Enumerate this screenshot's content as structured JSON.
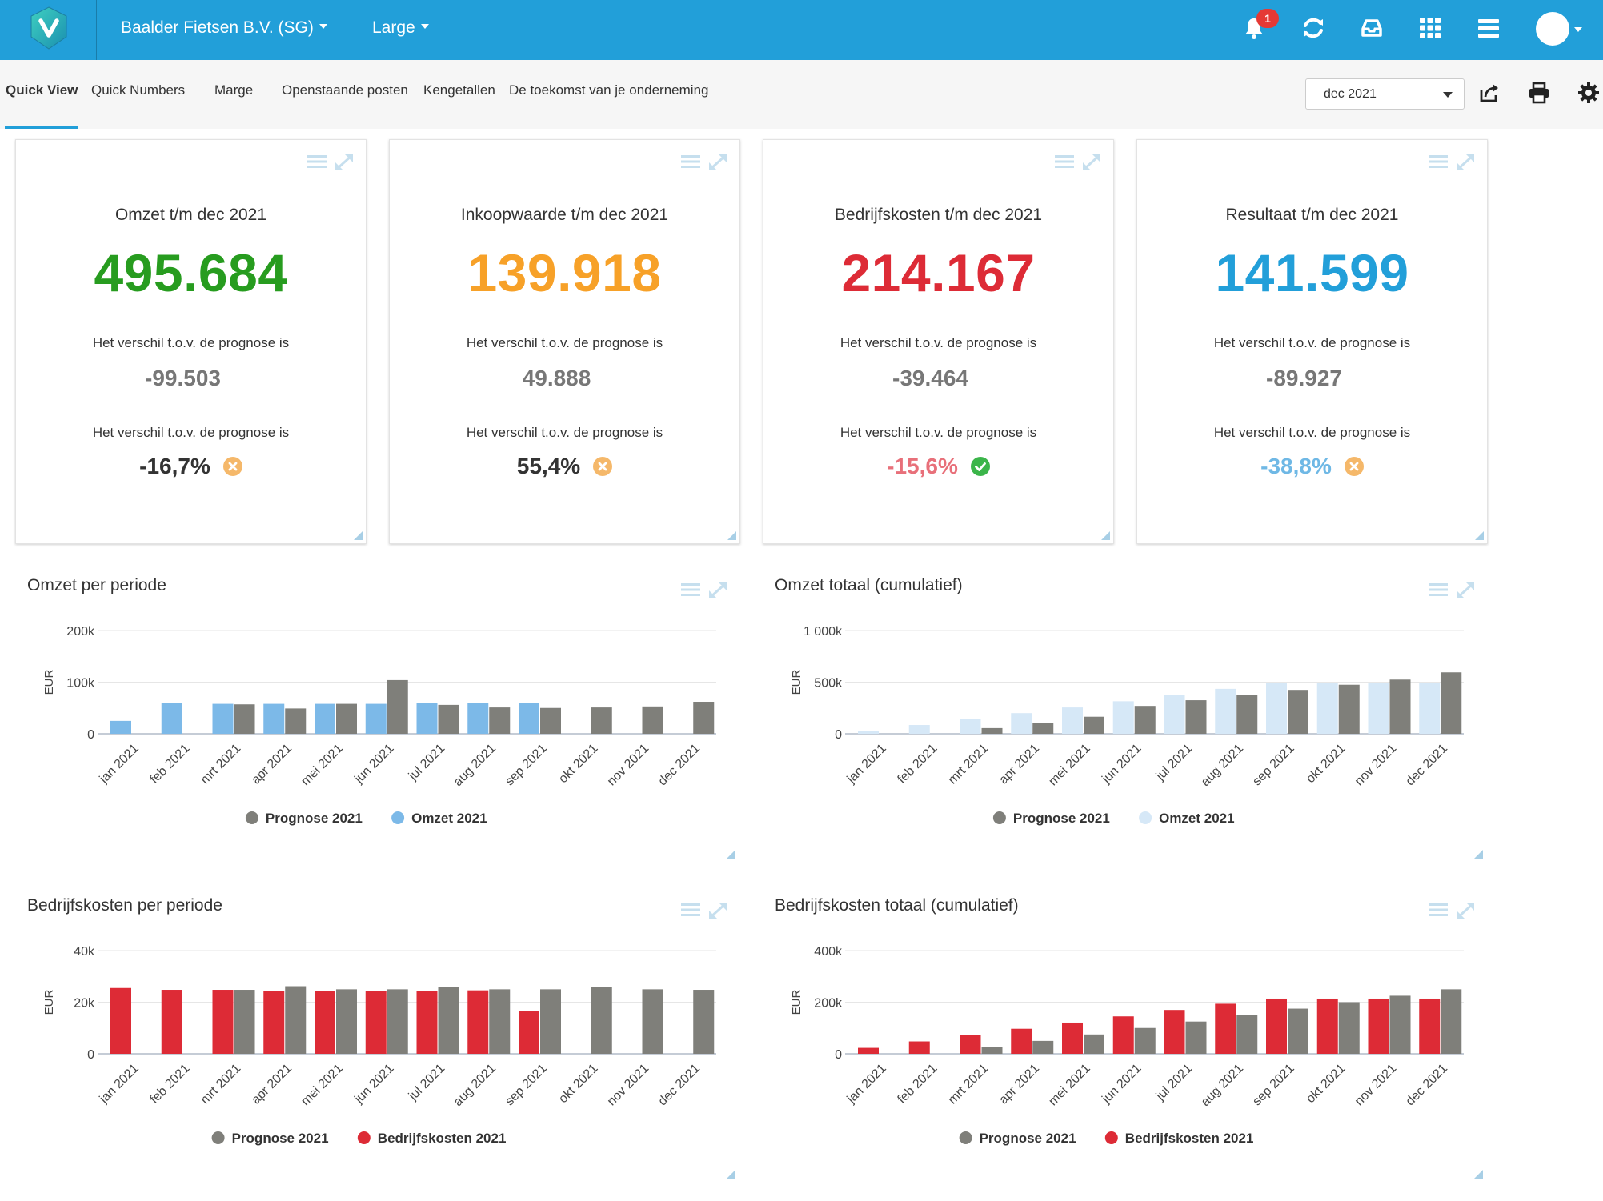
{
  "topbar": {
    "company": "Baalder Fietsen B.V. (SG)",
    "size": "Large",
    "notification_count": "1",
    "icons": [
      "bell-icon",
      "refresh-icon",
      "inbox-icon",
      "apps-grid-icon",
      "menu-icon"
    ]
  },
  "subnav": {
    "tabs": [
      "Quick View",
      "Quick Numbers",
      "Marge",
      "Openstaande posten",
      "Kengetallen",
      "De toekomst van je onderneming"
    ],
    "active_tab": "Quick View",
    "period": "dec 2021"
  },
  "kpis": [
    {
      "title": "Omzet t/m dec 2021",
      "value": "495.684",
      "color": "#279c1f",
      "label1": "Het verschil t.o.v. de prognose is",
      "diff": "-99.503",
      "label2": "Het verschil t.o.v. de prognose is",
      "pct": "-16,7%",
      "pct_color": "#333333",
      "status": "cross"
    },
    {
      "title": "Inkoopwaarde t/m dec 2021",
      "value": "139.918",
      "color": "#f7a128",
      "label1": "Het verschil t.o.v. de prognose is",
      "diff": "49.888",
      "label2": "Het verschil t.o.v. de prognose is",
      "pct": "55,4%",
      "pct_color": "#333333",
      "status": "cross"
    },
    {
      "title": "Bedrijfskosten t/m dec 2021",
      "value": "214.167",
      "color": "#dd2b36",
      "label1": "Het verschil t.o.v. de prognose is",
      "diff": "-39.464",
      "label2": "Het verschil t.o.v. de prognose is",
      "pct": "-15,6%",
      "pct_color": "#e8707a",
      "status": "check"
    },
    {
      "title": "Resultaat t/m dec 2021",
      "value": "141.599",
      "color": "#229fd9",
      "label1": "Het verschil t.o.v. de prognose is",
      "diff": "-89.927",
      "label2": "Het verschil t.o.v. de prognose is",
      "pct": "-38,8%",
      "pct_color": "#6fb8e5",
      "status": "cross"
    }
  ],
  "chart_data": [
    {
      "type": "bar",
      "title": "Omzet per periode",
      "ylabel": "EUR",
      "ylim": [
        0,
        200000
      ],
      "ytick_values": [
        0,
        100000,
        200000
      ],
      "ytick_labels": [
        "0",
        "100k",
        "200k"
      ],
      "categories": [
        "jan 2021",
        "feb 2021",
        "mrt 2021",
        "apr 2021",
        "mei 2021",
        "jun 2021",
        "jul 2021",
        "aug 2021",
        "sep 2021",
        "okt 2021",
        "nov 2021",
        "dec 2021"
      ],
      "series": [
        {
          "name": "Omzet 2021",
          "color": "#7cb9e8",
          "values": [
            25000,
            60000,
            58000,
            58000,
            58000,
            58000,
            60000,
            59000,
            59000,
            null,
            null,
            null
          ]
        },
        {
          "name": "Prognose 2021",
          "color": "#7f7f7a",
          "values": [
            null,
            null,
            57000,
            49000,
            58000,
            104000,
            56000,
            51000,
            50000,
            51000,
            53000,
            62000
          ]
        }
      ],
      "legend": [
        "Prognose 2021",
        "Omzet 2021"
      ]
    },
    {
      "type": "bar",
      "title": "Omzet totaal (cumulatief)",
      "ylabel": "EUR",
      "ylim": [
        0,
        1000000
      ],
      "ytick_values": [
        0,
        500000,
        1000000
      ],
      "ytick_labels": [
        "0",
        "500k",
        "1 000k"
      ],
      "categories": [
        "jan 2021",
        "feb 2021",
        "mrt 2021",
        "apr 2021",
        "mei 2021",
        "jun 2021",
        "jul 2021",
        "aug 2021",
        "sep 2021",
        "okt 2021",
        "nov 2021",
        "dec 2021"
      ],
      "series": [
        {
          "name": "Omzet 2021",
          "color": "#d6e8f7",
          "values": [
            25000,
            85000,
            140000,
            200000,
            255000,
            315000,
            375000,
            435000,
            495000,
            495000,
            495000,
            495000
          ]
        },
        {
          "name": "Prognose 2021",
          "color": "#7f7f7a",
          "values": [
            null,
            null,
            55000,
            105000,
            165000,
            270000,
            325000,
            375000,
            425000,
            475000,
            525000,
            595000
          ]
        }
      ],
      "legend": [
        "Prognose 2021",
        "Omzet 2021"
      ]
    },
    {
      "type": "bar",
      "title": "Bedrijfskosten per periode",
      "ylabel": "EUR",
      "ylim": [
        0,
        40000
      ],
      "ytick_values": [
        0,
        20000,
        40000
      ],
      "ytick_labels": [
        "0",
        "20k",
        "40k"
      ],
      "categories": [
        "jan 2021",
        "feb 2021",
        "mrt 2021",
        "apr 2021",
        "mei 2021",
        "jun 2021",
        "jul 2021",
        "aug 2021",
        "sep 2021",
        "okt 2021",
        "nov 2021",
        "dec 2021"
      ],
      "series": [
        {
          "name": "Bedrijfskosten 2021",
          "color": "#dd2b36",
          "values": [
            25500,
            24800,
            24800,
            24200,
            24200,
            24400,
            24400,
            24600,
            16500,
            null,
            null,
            null
          ]
        },
        {
          "name": "Prognose 2021",
          "color": "#7f7f7a",
          "values": [
            null,
            null,
            24800,
            26200,
            25000,
            25000,
            25800,
            25000,
            25000,
            25800,
            25000,
            24800
          ]
        }
      ],
      "legend": [
        "Prognose 2021",
        "Bedrijfskosten 2021"
      ]
    },
    {
      "type": "bar",
      "title": "Bedrijfskosten totaal (cumulatief)",
      "ylabel": "EUR",
      "ylim": [
        0,
        400000
      ],
      "ytick_values": [
        0,
        200000,
        400000
      ],
      "ytick_labels": [
        "0",
        "200k",
        "400k"
      ],
      "categories": [
        "jan 2021",
        "feb 2021",
        "mrt 2021",
        "apr 2021",
        "mei 2021",
        "jun 2021",
        "jul 2021",
        "aug 2021",
        "sep 2021",
        "okt 2021",
        "nov 2021",
        "dec 2021"
      ],
      "series": [
        {
          "name": "Bedrijfskosten 2021",
          "color": "#dd2b36",
          "values": [
            23000,
            48000,
            72000,
            97000,
            121000,
            145000,
            170000,
            194000,
            214000,
            214000,
            214000,
            214000
          ]
        },
        {
          "name": "Prognose 2021",
          "color": "#7f7f7a",
          "values": [
            null,
            null,
            25000,
            50000,
            75000,
            100000,
            125000,
            150000,
            175000,
            200000,
            225000,
            250000
          ]
        }
      ],
      "legend": [
        "Prognose 2021",
        "Bedrijfskosten 2021"
      ]
    }
  ]
}
